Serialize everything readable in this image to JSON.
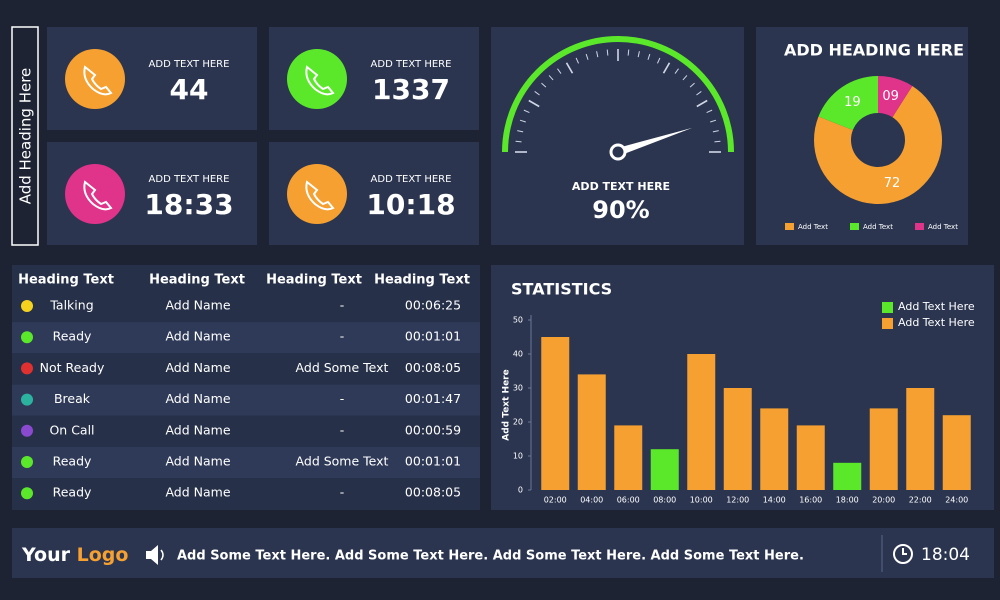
{
  "sidebar_heading": "Add Heading Here",
  "stat_cards": [
    {
      "label": "ADD TEXT HERE",
      "value": 44,
      "color": "#f5a030"
    },
    {
      "label": "ADD TEXT HERE",
      "value": 1337,
      "color": "#5ce82a"
    },
    {
      "label": "ADD TEXT HERE",
      "value": "18:33",
      "color": "#e0338a"
    },
    {
      "label": "ADD TEXT HERE",
      "value": "10:18",
      "color": "#f5a030"
    }
  ],
  "gauge": {
    "label": "ADD TEXT HERE",
    "value": 90,
    "value_label": "90%",
    "lim": [
      0,
      100
    ],
    "color": "#5ce82a"
  },
  "donut": {
    "title": "ADD HEADING HERE",
    "series": [
      {
        "name": "Add Text",
        "color": "#f5a030",
        "value": 72,
        "value_label": "72"
      },
      {
        "name": "Add Text",
        "color": "#5ce82a",
        "value": 19,
        "value_label": "19"
      },
      {
        "name": "Add Text",
        "color": "#e0338a",
        "value": 9,
        "value_label": "09"
      }
    ]
  },
  "table": {
    "headers": [
      "Heading Text",
      "Heading Text",
      "Heading Text",
      "Heading Text"
    ],
    "rows": [
      [
        "Talking",
        "Add Name",
        "-",
        "00:06:25"
      ],
      [
        "Ready",
        "Add Name",
        "-",
        "00:01:01"
      ],
      [
        "Not Ready",
        "Add Name",
        "Add Some Text",
        "00:08:05"
      ],
      [
        "Break",
        "Add Name",
        "-",
        "00:01:47"
      ],
      [
        "On Call",
        "Add Name",
        "-",
        "00:00:59"
      ],
      [
        "Ready",
        "Add Name",
        "Add Some Text",
        "00:01:01"
      ],
      [
        "Ready",
        "Add Name",
        "-",
        "00:08:05"
      ]
    ]
  },
  "chart_data": {
    "type": "bar",
    "title": "STATISTICS",
    "y_label": "Add Text Here",
    "categories": [
      "02:00",
      "04:00",
      "06:00",
      "08:00",
      "10:00",
      "12:00",
      "14:00",
      "16:00",
      "18:00",
      "20:00",
      "22:00",
      "24:00"
    ],
    "series": [
      {
        "name": "Add Text Here",
        "color": "#5ce82a",
        "values": [
          null,
          null,
          null,
          12,
          null,
          null,
          null,
          null,
          8,
          null,
          null,
          null
        ]
      },
      {
        "name": "Add Text Here",
        "color": "#f5a030",
        "values": [
          45,
          34,
          19,
          null,
          40,
          30,
          24,
          19,
          null,
          24,
          30,
          22
        ]
      }
    ],
    "ylim": [
      0,
      50
    ],
    "yticks": [
      0,
      10,
      20,
      30,
      40,
      50
    ]
  },
  "footer": {
    "logo_your": "Your",
    "logo_logo": "Logo",
    "ticker": "Add Some Text Here. Add Some Text Here. Add Some Text Here. Add Some Text Here.",
    "clock": "18:04"
  }
}
